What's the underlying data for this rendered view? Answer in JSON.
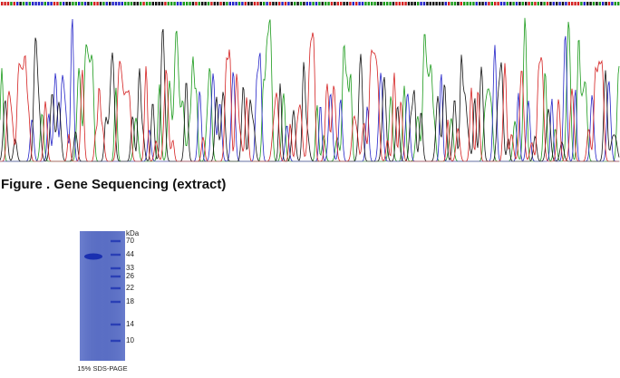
{
  "figure_caption": "Figure . Gene Sequencing (extract)",
  "gel": {
    "unit": "kDa",
    "markers": [
      "70",
      "44",
      "33",
      "26",
      "22",
      "18",
      "14",
      "10"
    ],
    "label": "15% SDS-PAGE"
  }
}
